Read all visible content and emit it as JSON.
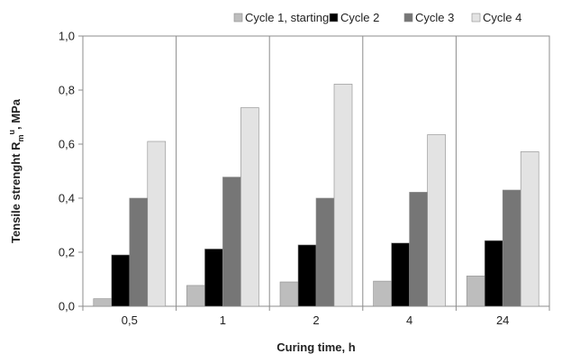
{
  "chart_data": {
    "type": "bar",
    "title": "",
    "xlabel": "Curing time, h",
    "ylabel": "Tensile strenght R",
    "ylabel_sub": "m",
    "ylabel_sup": "u",
    "ylabel_unit": ", MPa",
    "categories": [
      "0,5",
      "1",
      "2",
      "4",
      "24"
    ],
    "series": [
      {
        "name": "Cycle 1, starting",
        "color": "#bdbdbd",
        "values": [
          0.028,
          0.077,
          0.09,
          0.093,
          0.112
        ]
      },
      {
        "name": "Cycle 2",
        "color": "#000000",
        "values": [
          0.19,
          0.212,
          0.227,
          0.234,
          0.243
        ]
      },
      {
        "name": "Cycle 3",
        "color": "#767676",
        "values": [
          0.4,
          0.478,
          0.4,
          0.422,
          0.43
        ]
      },
      {
        "name": "Cycle 4",
        "color": "#e3e3e3",
        "values": [
          0.61,
          0.735,
          0.822,
          0.635,
          0.572
        ]
      }
    ],
    "ylim": [
      0,
      1.0
    ],
    "yticks": [
      "0,0",
      "0,2",
      "0,4",
      "0,6",
      "0,8",
      "1,0"
    ],
    "grid": "vertical category separators",
    "legend": "top"
  }
}
